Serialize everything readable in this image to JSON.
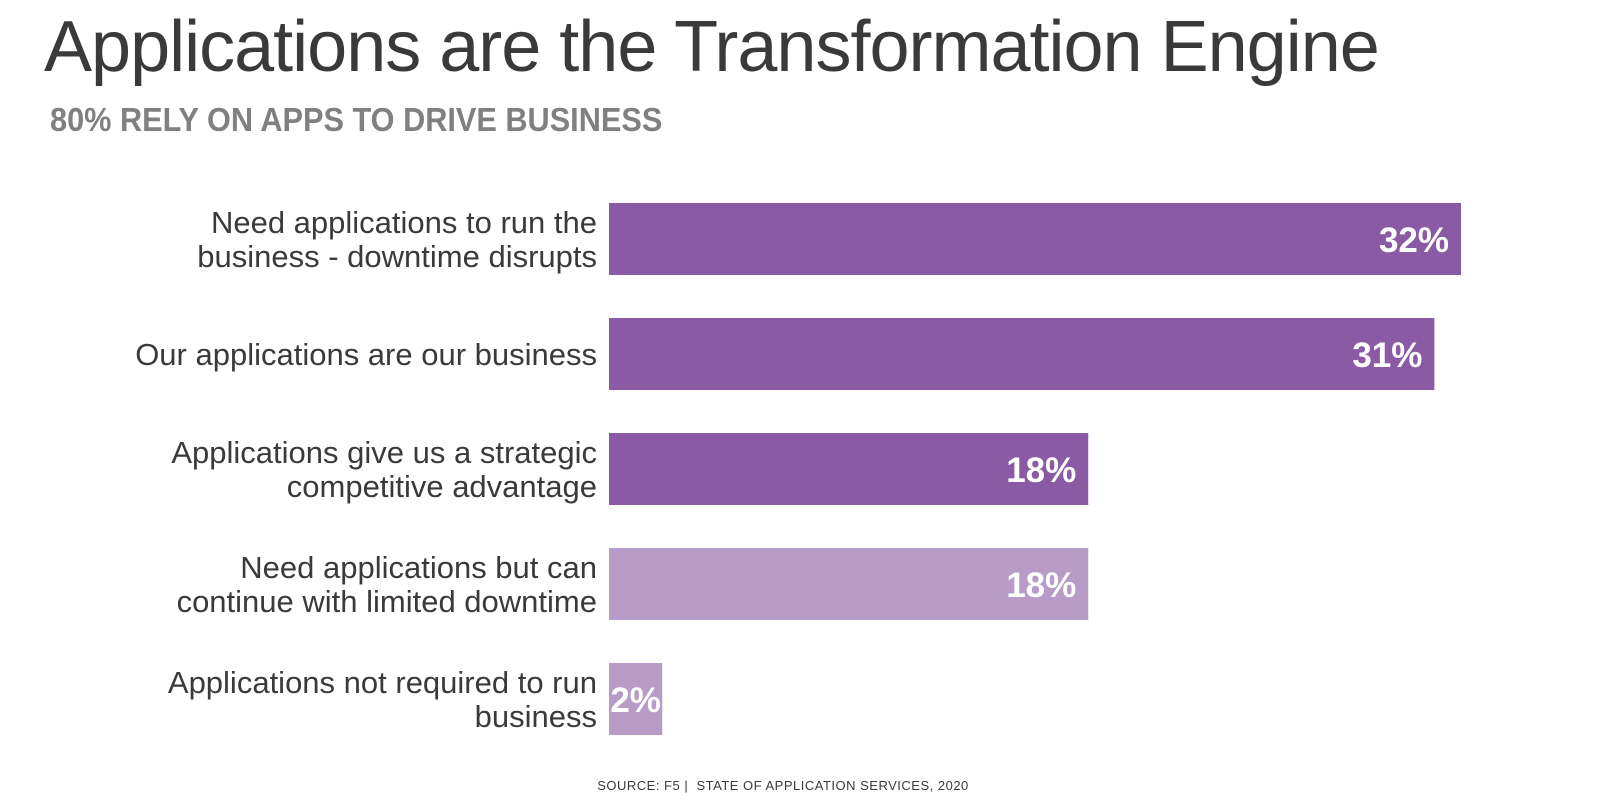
{
  "slide": {
    "title": "Applications are the Transformation Engine",
    "subtitle": "80% RELY ON APPS TO DRIVE BUSINESS",
    "source_prefix": "SOURCE: F5",
    "source_separator": "|",
    "source_text": "STATE OF APPLICATION SERVICES, 2020"
  },
  "chart_data": {
    "type": "bar",
    "orientation": "horizontal",
    "title": "",
    "xlabel": "",
    "ylabel": "",
    "xlim": [
      0,
      32
    ],
    "grid": false,
    "legend": "none",
    "categories": [
      [
        "Need applications to run the",
        "business - downtime disrupts"
      ],
      [
        "Our applications are our business"
      ],
      [
        "Applications give us a strategic",
        "competitive advantage"
      ],
      [
        "Need applications but can",
        "continue with limited downtime"
      ],
      [
        "Applications not required to run",
        "business"
      ]
    ],
    "values": [
      32,
      31,
      18,
      18,
      2
    ],
    "value_labels": [
      "32%",
      "31%",
      "18%",
      "18%",
      "2%"
    ],
    "colors": [
      "#8a5aa5",
      "#8a5aa5",
      "#8a5aa5",
      "#b99bc8",
      "#b99bc8"
    ],
    "label_color": "#ffffff",
    "category_text_color": "#3a3a3a"
  }
}
